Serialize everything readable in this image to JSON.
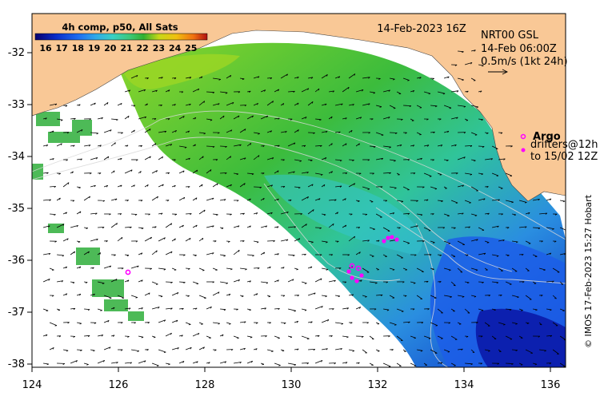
{
  "map": {
    "header_date": "14-Feb-2023 16Z",
    "legend": {
      "title": "4h comp, p50, All Sats",
      "ticks": [
        "16",
        "17",
        "18",
        "19",
        "20",
        "21",
        "22",
        "23",
        "24",
        "25"
      ]
    },
    "info": {
      "line1": "NRT00 GSL",
      "line2": "14-Feb 06:00Z",
      "line3": "0.5m/s (1kt 24h)"
    },
    "argo_label": "Argo",
    "drifter_label1": "drifters@12h",
    "drifter_label2": "to 15/02 12Z",
    "credit": "© IMOS 17-Feb-2023 15:27 Hobart",
    "x_ticks": [
      "124",
      "126",
      "128",
      "130",
      "132",
      "134",
      "136"
    ],
    "y_ticks": [
      "-32",
      "-33",
      "-34",
      "-35",
      "-36",
      "-37",
      "-38"
    ],
    "colors": {
      "land": "#f9c896",
      "ocean_blank": "#ffffff",
      "argo": "#ff00ff",
      "palette": [
        "#08006e",
        "#0a2cc8",
        "#1e6cf0",
        "#2ea8e8",
        "#3ad0c4",
        "#3cc878",
        "#30b030",
        "#7ad020",
        "#c8d818",
        "#f0c010",
        "#f07010",
        "#b01010"
      ]
    }
  }
}
